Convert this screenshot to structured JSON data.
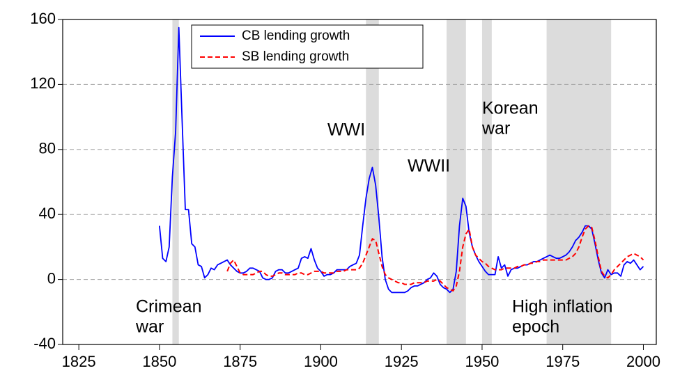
{
  "chart_data": {
    "type": "line",
    "x": [
      1850,
      1851,
      1852,
      1853,
      1854,
      1855,
      1856,
      1857,
      1858,
      1859,
      1860,
      1861,
      1862,
      1863,
      1864,
      1865,
      1866,
      1867,
      1868,
      1869,
      1870,
      1871,
      1872,
      1873,
      1874,
      1875,
      1876,
      1877,
      1878,
      1879,
      1880,
      1881,
      1882,
      1883,
      1884,
      1885,
      1886,
      1887,
      1888,
      1889,
      1890,
      1891,
      1892,
      1893,
      1894,
      1895,
      1896,
      1897,
      1898,
      1899,
      1900,
      1901,
      1902,
      1903,
      1904,
      1905,
      1906,
      1907,
      1908,
      1909,
      1910,
      1911,
      1912,
      1913,
      1914,
      1915,
      1916,
      1917,
      1918,
      1919,
      1920,
      1921,
      1922,
      1923,
      1924,
      1925,
      1926,
      1927,
      1928,
      1929,
      1930,
      1931,
      1932,
      1933,
      1934,
      1935,
      1936,
      1937,
      1938,
      1939,
      1940,
      1941,
      1942,
      1943,
      1944,
      1945,
      1946,
      1947,
      1948,
      1949,
      1950,
      1951,
      1952,
      1953,
      1954,
      1955,
      1956,
      1957,
      1958,
      1959,
      1960,
      1961,
      1962,
      1963,
      1964,
      1965,
      1966,
      1967,
      1968,
      1969,
      1970,
      1971,
      1972,
      1973,
      1974,
      1975,
      1976,
      1977,
      1978,
      1979,
      1980,
      1981,
      1982,
      1983,
      1984,
      1985,
      1986,
      1987,
      1988,
      1989,
      1990,
      1991,
      1992,
      1993,
      1994,
      1995,
      1996,
      1997,
      1998,
      1999,
      2000
    ],
    "series": [
      {
        "name": "CB lending growth",
        "color": "#0000ff",
        "dashed": false,
        "values": [
          33,
          13,
          11,
          20,
          63,
          91,
          155,
          99,
          43,
          43,
          22,
          20,
          9,
          8,
          1,
          3,
          7,
          6,
          9,
          10,
          11,
          12,
          9,
          7,
          5,
          4,
          4,
          5,
          7,
          7,
          6,
          5,
          1,
          0,
          0,
          1,
          5,
          6,
          6,
          4,
          4,
          5,
          6,
          7,
          13,
          14,
          13,
          19,
          12,
          7,
          5,
          2,
          3,
          3,
          4,
          6,
          6,
          6,
          6,
          8,
          9,
          10,
          15,
          33,
          50,
          62,
          69,
          58,
          38,
          14,
          0,
          -6,
          -8,
          -8,
          -8,
          -8,
          -8,
          -7,
          -5,
          -4,
          -4,
          -3,
          -2,
          0,
          1,
          4,
          2,
          -3,
          -5,
          -6,
          -8,
          -6,
          5,
          33,
          50,
          45,
          29,
          20,
          15,
          11,
          8,
          5,
          3,
          3,
          3,
          14,
          7,
          9,
          2,
          6,
          7,
          7,
          8,
          9,
          9,
          10,
          11,
          11,
          12,
          13,
          14,
          15,
          14,
          13,
          13,
          14,
          15,
          17,
          20,
          24,
          26,
          29,
          33,
          33,
          31,
          22,
          12,
          4,
          1,
          6,
          3,
          4,
          4,
          2,
          9,
          11,
          10,
          12,
          9,
          6,
          8
        ]
      },
      {
        "name": "SB lending growth",
        "color": "#ff0000",
        "dashed": true,
        "values": [
          null,
          null,
          null,
          null,
          null,
          null,
          null,
          null,
          null,
          null,
          null,
          null,
          null,
          null,
          null,
          null,
          null,
          null,
          null,
          null,
          null,
          5,
          10,
          12,
          8,
          4,
          3,
          3,
          3,
          3,
          4,
          5,
          5,
          3,
          2,
          2,
          3,
          4,
          4,
          3,
          3,
          3,
          3,
          4,
          4,
          3,
          3,
          4,
          5,
          5,
          5,
          4,
          4,
          4,
          4,
          5,
          5,
          5,
          6,
          6,
          6,
          6,
          7,
          10,
          15,
          20,
          25,
          24,
          16,
          8,
          3,
          1,
          0,
          -1,
          -2,
          -2,
          -3,
          -3,
          -3,
          -2,
          -2,
          -2,
          -2,
          -1,
          -1,
          -1,
          0,
          -1,
          -3,
          -5,
          -6,
          -7,
          -4,
          5,
          20,
          28,
          31,
          20,
          15,
          13,
          11,
          10,
          8,
          7,
          6,
          6,
          6,
          7,
          7,
          7,
          7,
          8,
          8,
          9,
          9,
          10,
          10,
          11,
          11,
          12,
          12,
          12,
          12,
          12,
          12,
          12,
          12,
          13,
          14,
          16,
          20,
          26,
          31,
          33,
          32,
          24,
          14,
          5,
          2,
          1,
          3,
          6,
          8,
          10,
          12,
          14,
          15,
          16,
          15,
          14,
          12
        ]
      }
    ],
    "shaded": [
      [
        1854,
        1856
      ],
      [
        1914,
        1918
      ],
      [
        1939,
        1945
      ],
      [
        1950,
        1953
      ],
      [
        1970,
        1990
      ]
    ],
    "shade_color": "#dcdcdc",
    "annotations": [
      {
        "lines": [
          "Crimean",
          "war"
        ]
      },
      {
        "lines": [
          "WWI"
        ]
      },
      {
        "lines": [
          "WWII"
        ]
      },
      {
        "lines": [
          "Korean",
          "war"
        ]
      },
      {
        "lines": [
          "High inflation",
          "epoch"
        ]
      }
    ],
    "xlim": [
      1820,
      2004
    ],
    "xticks": [
      1825,
      1850,
      1875,
      1900,
      1925,
      1950,
      1975,
      2000
    ],
    "ylim": [
      -40,
      160
    ],
    "yticks": [
      -40,
      0,
      40,
      80,
      120,
      160
    ],
    "grid": true,
    "legend": "top-left"
  }
}
